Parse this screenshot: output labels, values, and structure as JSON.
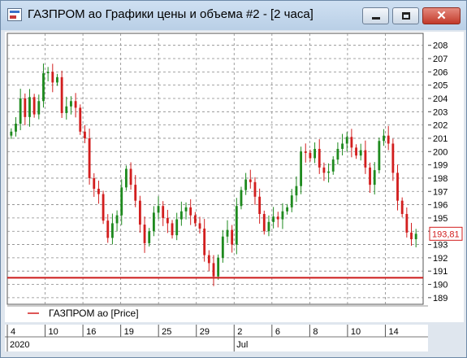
{
  "window": {
    "title": "ГАЗПРОМ ао Графики цены и объема #2 - [2 часа]",
    "close_glyph": "✕"
  },
  "legend": {
    "label": "ГАЗПРОМ ао [Price]"
  },
  "last_price": {
    "label": "193,81",
    "value": 193.81
  },
  "colors": {
    "up": "#1e8a1e",
    "down": "#d21e1e",
    "level_line": "#cc1a1a",
    "grid": "#888888"
  },
  "level_line_value": 190.5,
  "chart_data": {
    "type": "candlestick",
    "ylim": [
      188.5,
      208.9
    ],
    "y_ticks": [
      208,
      207,
      206,
      205,
      204,
      203,
      202,
      201,
      200,
      199,
      198,
      197,
      196,
      195,
      194,
      193,
      192,
      191,
      190,
      189
    ],
    "x_ticks": [
      "4",
      "10",
      "16",
      "19",
      "25",
      "29",
      "2",
      "6",
      "8",
      "10",
      "14"
    ],
    "x_period_labels": [
      "2020",
      "Jul"
    ],
    "close_path": [
      201.5,
      202.1,
      204.0,
      202.6,
      204.1,
      202.8,
      203.8,
      205.9,
      206.0,
      205.2,
      205.6,
      202.9,
      203.4,
      203.8,
      203.3,
      201.5,
      201.0,
      198.0,
      197.2,
      196.8,
      194.8,
      193.5,
      194.6,
      195.2,
      197.3,
      198.7,
      197.5,
      196.3,
      194.5,
      193.1,
      194.0,
      195.4,
      195.9,
      195.0,
      194.6,
      193.7,
      194.9,
      195.5,
      195.8,
      195.2,
      194.6,
      194.2,
      192.2,
      191.6,
      190.6,
      192.0,
      193.6,
      194.1,
      193.0,
      195.9,
      197.1,
      197.9,
      197.7,
      196.6,
      195.3,
      194.0,
      194.7,
      195.1,
      194.9,
      195.5,
      195.8,
      196.7,
      197.4,
      200.0,
      199.9,
      199.5,
      200.2,
      198.8,
      198.4,
      198.5,
      199.4,
      200.2,
      200.6,
      201.1,
      200.3,
      199.7,
      200.1,
      198.8,
      197.5,
      198.6,
      200.8,
      201.2,
      200.6,
      198.4,
      196.3,
      195.3,
      193.9,
      193.4,
      193.81
    ]
  }
}
